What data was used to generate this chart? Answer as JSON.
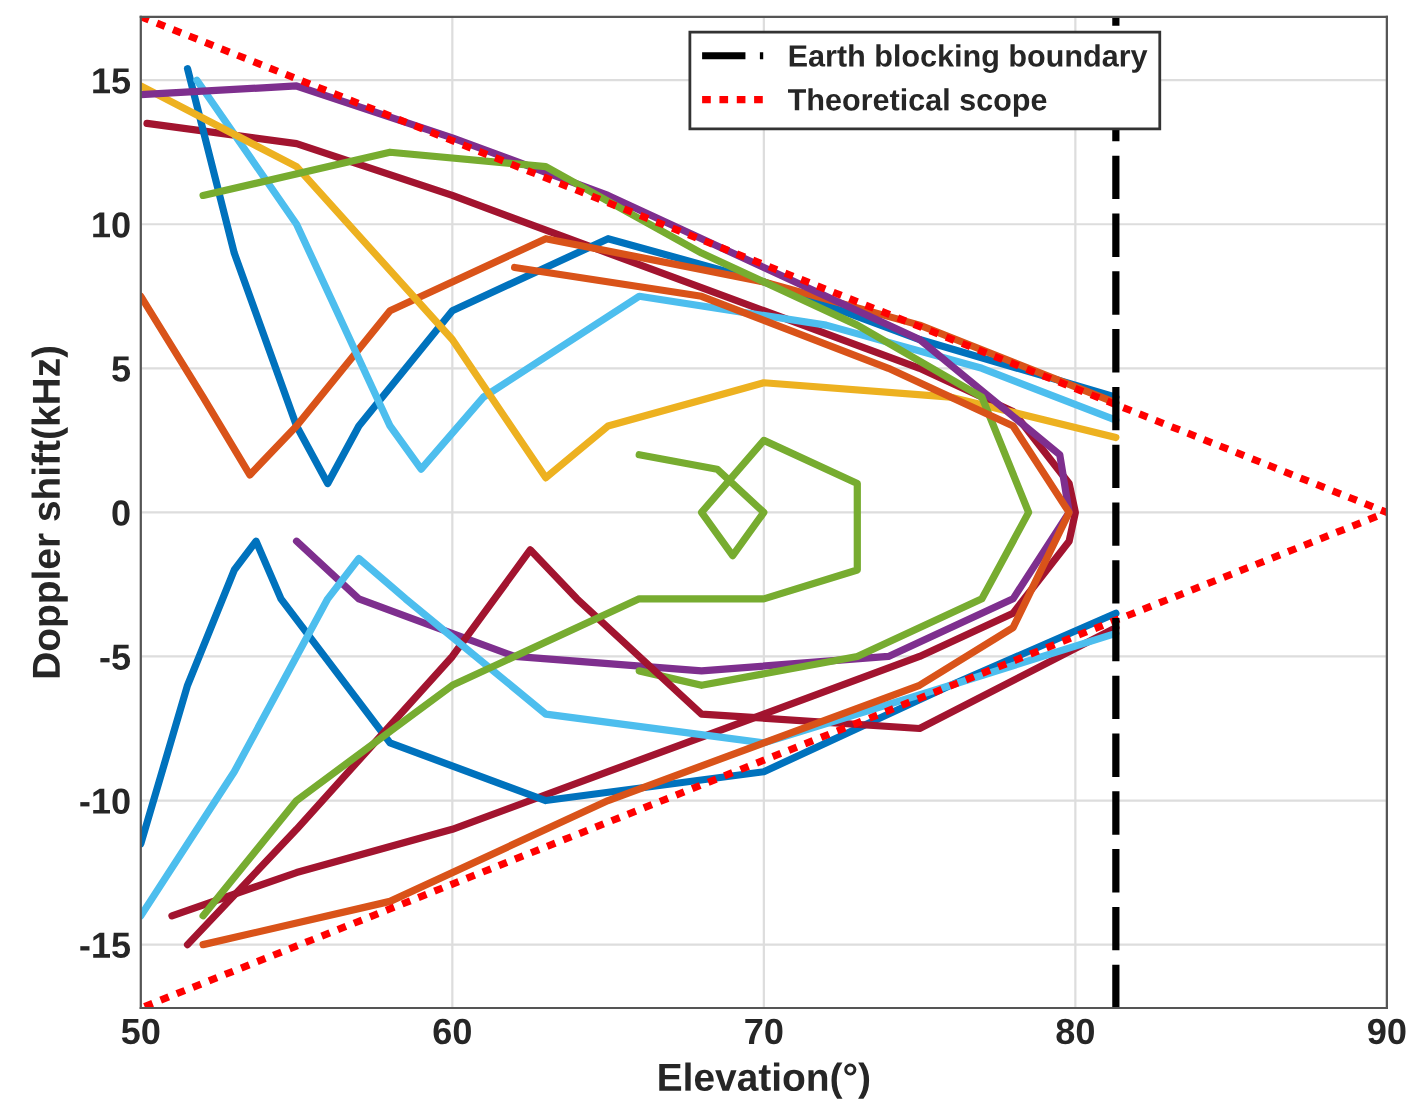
{
  "chart_data": {
    "type": "line",
    "xlabel": "Elevation(°)",
    "ylabel": "Doppler shift(kHz)",
    "xlim": [
      50,
      90
    ],
    "ylim": [
      -17.2,
      17.2
    ],
    "xticks": [
      50,
      60,
      70,
      80,
      90
    ],
    "yticks": [
      -15,
      -10,
      -5,
      0,
      5,
      10,
      15
    ],
    "grid": true,
    "legend": "top right",
    "line_style": "solid",
    "marker": "none",
    "ref_lines": [
      {
        "axis": "x",
        "value": 81.3,
        "label": "Earth blocking boundary",
        "color": "#000000",
        "line_style": "dashed"
      }
    ],
    "series": [
      {
        "color": "#a2142f",
        "x": [
          50.2,
          55,
          60,
          65,
          70,
          75,
          78,
          79.8,
          80,
          79.8,
          78,
          75,
          70,
          65,
          60,
          55,
          51
        ],
        "values": [
          13.5,
          12.8,
          11,
          9,
          7,
          5,
          3.5,
          1,
          0,
          -1,
          -3.5,
          -5,
          -7,
          -9,
          -11,
          -12.5,
          -14
        ]
      },
      {
        "color": "#0072bd",
        "x": [
          51.5,
          53,
          55,
          56,
          57,
          60,
          65,
          70,
          75,
          81.3
        ],
        "values": [
          15.4,
          9,
          3,
          1,
          3,
          7,
          9.5,
          8,
          6,
          4
        ]
      },
      {
        "color": "#d95319",
        "x": [
          50,
          52,
          53.5,
          55,
          58,
          63,
          70,
          75,
          81.3
        ],
        "values": [
          7.5,
          4,
          1.3,
          3,
          7,
          9.5,
          8,
          6.5,
          3.8
        ]
      },
      {
        "color": "#4dbeee",
        "x": [
          51.8,
          55,
          58,
          59,
          61,
          66,
          72,
          77,
          81.3
        ],
        "values": [
          15,
          10,
          3,
          1.5,
          4,
          7.5,
          6.5,
          5,
          3.2
        ]
      },
      {
        "color": "#edb120",
        "x": [
          50,
          55,
          60,
          63,
          65,
          70,
          76,
          81.3
        ],
        "values": [
          14.8,
          12,
          6,
          1.2,
          3,
          4.5,
          4,
          2.6
        ]
      },
      {
        "color": "#7e2f8e",
        "x": [
          50,
          55,
          60,
          65,
          70,
          75,
          79.5,
          79.8,
          78,
          74,
          68,
          62,
          57,
          55
        ],
        "values": [
          14.5,
          14.8,
          13,
          11,
          8.5,
          6,
          2,
          0,
          -3,
          -5,
          -5.5,
          -5,
          -3,
          -1
        ]
      },
      {
        "color": "#77ac30",
        "x": [
          52,
          58,
          63,
          68,
          73,
          77,
          78.5,
          77,
          73,
          68,
          66
        ],
        "values": [
          11,
          12.5,
          12,
          9,
          6.5,
          4,
          0,
          -3,
          -5,
          -6,
          -5.5
        ]
      },
      {
        "color": "#0072bd",
        "x": [
          50,
          51.5,
          53,
          53.7,
          54.5,
          58,
          63,
          70,
          76,
          81.3
        ],
        "values": [
          -11.5,
          -6,
          -2,
          -1,
          -3,
          -8,
          -10,
          -9,
          -6,
          -3.5
        ]
      },
      {
        "color": "#a2142f",
        "x": [
          51.5,
          55,
          60,
          62.5,
          64,
          68,
          75,
          81.3
        ],
        "values": [
          -15,
          -11,
          -5,
          -1.3,
          -3,
          -7,
          -7.5,
          -4
        ]
      },
      {
        "color": "#4dbeee",
        "x": [
          50,
          53,
          56,
          57,
          58.5,
          63,
          70,
          76,
          81.3
        ],
        "values": [
          -14,
          -9,
          -3,
          -1.6,
          -3,
          -7,
          -8,
          -6,
          -4.2
        ]
      },
      {
        "color": "#77ac30",
        "x": [
          66,
          68.5,
          70,
          69,
          68,
          70,
          73,
          73,
          70,
          66,
          60,
          55,
          52
        ],
        "values": [
          2,
          1.5,
          0,
          -1.5,
          0,
          2.5,
          1,
          -2,
          -3,
          -3,
          -6,
          -10,
          -14
        ]
      },
      {
        "color": "#d95319",
        "x": [
          52,
          58,
          65,
          70,
          75,
          78,
          79.8,
          78,
          74,
          68,
          62
        ],
        "values": [
          -15,
          -13.5,
          -10,
          -8,
          -6,
          -4,
          0,
          3,
          5,
          7.5,
          8.5
        ]
      },
      {
        "name": "Theoretical scope",
        "color": "#ff0000",
        "line_style": "dotted",
        "x": [
          50,
          90,
          50
        ],
        "values": [
          17.2,
          0,
          -17.2
        ]
      }
    ]
  }
}
